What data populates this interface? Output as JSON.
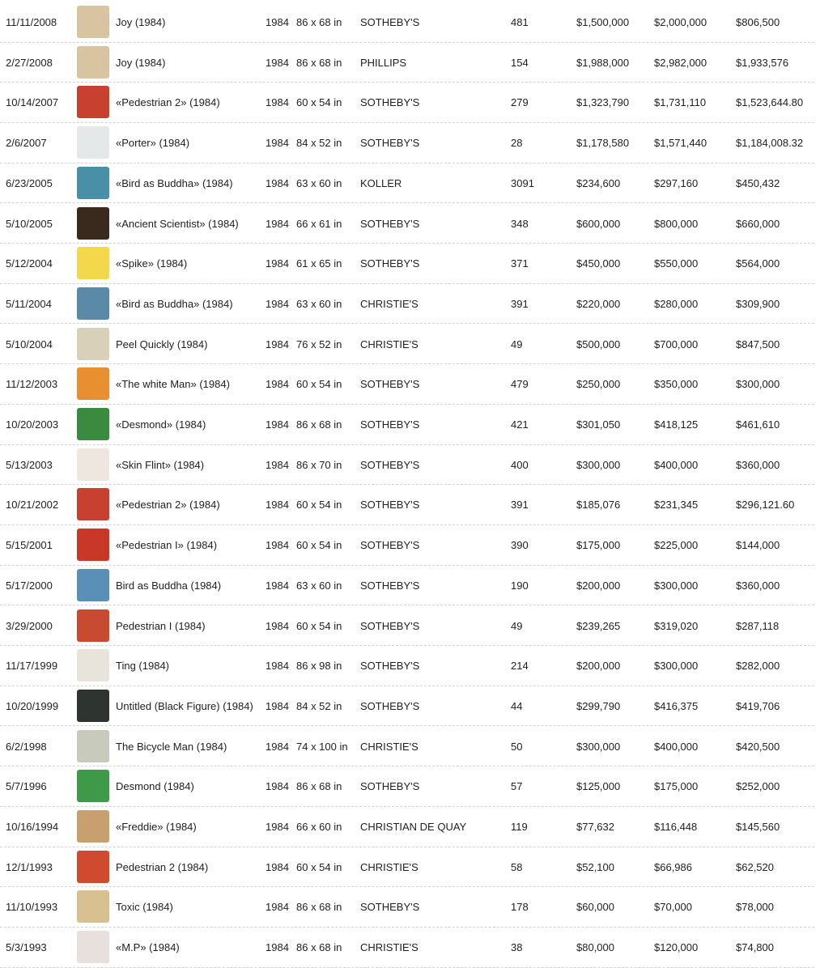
{
  "table": {
    "rows": [
      [
        "11/11/2008",
        "Joy (1984)",
        "1984",
        "86 x 68 in",
        "SOTHEBY'S",
        "481",
        "$1,500,000",
        "$2,000,000",
        "$806,500"
      ],
      [
        "2/27/2008",
        "Joy (1984)",
        "1984",
        "86 x 68 in",
        "PHILLIPS",
        "154",
        "$1,988,000",
        "$2,982,000",
        "$1,933,576"
      ],
      [
        "10/14/2007",
        "«Pedestrian 2» (1984)",
        "1984",
        "60 x 54 in",
        "SOTHEBY'S",
        "279",
        "$1,323,790",
        "$1,731,110",
        "$1,523,644.80"
      ],
      [
        "2/6/2007",
        "«Porter» (1984)",
        "1984",
        "84 x 52 in",
        "SOTHEBY'S",
        "28",
        "$1,178,580",
        "$1,571,440",
        "$1,184,008.32"
      ],
      [
        "6/23/2005",
        "«Bird as Buddha» (1984)",
        "1984",
        "63 x 60 in",
        "KOLLER",
        "3091",
        "$234,600",
        "$297,160",
        "$450,432"
      ],
      [
        "5/10/2005",
        "«Ancient Scientist» (1984)",
        "1984",
        "66 x 61 in",
        "SOTHEBY'S",
        "348",
        "$600,000",
        "$800,000",
        "$660,000"
      ],
      [
        "5/12/2004",
        "«Spike» (1984)",
        "1984",
        "61 x 65 in",
        "SOTHEBY'S",
        "371",
        "$450,000",
        "$550,000",
        "$564,000"
      ],
      [
        "5/11/2004",
        "«Bird as Buddha» (1984)",
        "1984",
        "63 x 60 in",
        "CHRISTIE'S",
        "391",
        "$220,000",
        "$280,000",
        "$309,900"
      ],
      [
        "5/10/2004",
        "Peel Quickly (1984)",
        "1984",
        "76 x 52 in",
        "CHRISTIE'S",
        "49",
        "$500,000",
        "$700,000",
        "$847,500"
      ],
      [
        "11/12/2003",
        "«The white Man» (1984)",
        "1984",
        "60 x 54 in",
        "SOTHEBY'S",
        "479",
        "$250,000",
        "$350,000",
        "$300,000"
      ],
      [
        "10/20/2003",
        "«Desmond» (1984)",
        "1984",
        "86 x 68 in",
        "SOTHEBY'S",
        "421",
        "$301,050",
        "$418,125",
        "$461,610"
      ],
      [
        "5/13/2003",
        "«Skin Flint» (1984)",
        "1984",
        "86 x 70 in",
        "SOTHEBY'S",
        "400",
        "$300,000",
        "$400,000",
        "$360,000"
      ],
      [
        "10/21/2002",
        "«Pedestrian 2» (1984)",
        "1984",
        "60 x 54 in",
        "SOTHEBY'S",
        "391",
        "$185,076",
        "$231,345",
        "$296,121.60"
      ],
      [
        "5/15/2001",
        "«Pedestrian I» (1984)",
        "1984",
        "60 x 54 in",
        "SOTHEBY'S",
        "390",
        "$175,000",
        "$225,000",
        "$144,000"
      ],
      [
        "5/17/2000",
        "Bird as Buddha (1984)",
        "1984",
        "63 x 60 in",
        "SOTHEBY'S",
        "190",
        "$200,000",
        "$300,000",
        "$360,000"
      ],
      [
        "3/29/2000",
        "Pedestrian I (1984)",
        "1984",
        "60 x 54 in",
        "SOTHEBY'S",
        "49",
        "$239,265",
        "$319,020",
        "$287,118"
      ],
      [
        "11/17/1999",
        "Ting (1984)",
        "1984",
        "86 x 98 in",
        "SOTHEBY'S",
        "214",
        "$200,000",
        "$300,000",
        "$282,000"
      ],
      [
        "10/20/1999",
        "Untitled (Black Figure) (1984)",
        "1984",
        "84 x 52 in",
        "SOTHEBY'S",
        "44",
        "$299,790",
        "$416,375",
        "$419,706"
      ],
      [
        "6/2/1998",
        "The Bicycle Man (1984)",
        "1984",
        "74 x 100 in",
        "CHRISTIE'S",
        "50",
        "$300,000",
        "$400,000",
        "$420,500"
      ],
      [
        "5/7/1996",
        "Desmond (1984)",
        "1984",
        "86 x 68 in",
        "SOTHEBY'S",
        "57",
        "$125,000",
        "$175,000",
        "$252,000"
      ],
      [
        "10/16/1994",
        "«Freddie» (1984)",
        "1984",
        "66 x 60 in",
        "CHRISTIAN DE QUAY",
        "119",
        "$77,632",
        "$116,448",
        "$145,560"
      ],
      [
        "12/1/1993",
        "Pedestrian 2 (1984)",
        "1984",
        "60 x 54 in",
        "CHRISTIE'S",
        "58",
        "$52,100",
        "$66,986",
        "$62,520"
      ],
      [
        "11/10/1993",
        "Toxic (1984)",
        "1984",
        "86 x 68 in",
        "SOTHEBY'S",
        "178",
        "$60,000",
        "$70,000",
        "$78,000"
      ],
      [
        "5/3/1993",
        "«M.P» (1984)",
        "1984",
        "86 x 68 in",
        "CHRISTIE'S",
        "38",
        "$80,000",
        "$120,000",
        "$74,800"
      ]
    ]
  }
}
